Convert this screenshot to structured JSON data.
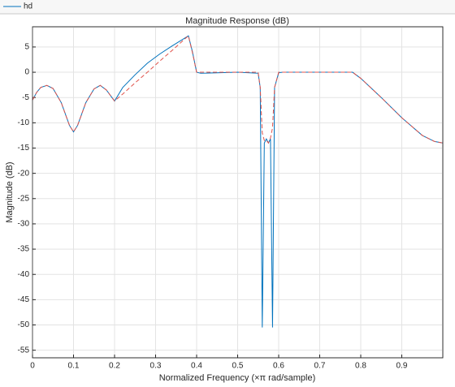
{
  "chart_data": {
    "type": "line",
    "title": "Magnitude Response (dB)",
    "x_label": "Normalized Frequency (×π rad/sample)",
    "y_label": "Magnitude (dB)",
    "x": [
      0,
      0.01,
      0.02,
      0.035,
      0.05,
      0.07,
      0.09,
      0.1,
      0.11,
      0.13,
      0.15,
      0.165,
      0.18,
      0.2,
      0.22,
      0.25,
      0.28,
      0.31,
      0.34,
      0.37,
      0.38,
      0.39,
      0.4,
      0.41,
      0.5,
      0.55,
      0.555,
      0.56,
      0.565,
      0.57,
      0.575,
      0.58,
      0.585,
      0.59,
      0.6,
      0.61,
      0.7,
      0.78,
      0.8,
      0.85,
      0.9,
      0.95,
      0.98,
      1.0
    ],
    "series": [
      {
        "name": "hd",
        "color": "#0072bd",
        "dashed": false,
        "values": [
          -5.5,
          -4,
          -3,
          -2.6,
          -3.2,
          -6,
          -10.5,
          -11.8,
          -10.5,
          -6,
          -3.3,
          -2.6,
          -3.5,
          -5.7,
          -3,
          -0.5,
          1.8,
          3.6,
          5.2,
          6.7,
          7.2,
          4,
          0,
          -0.2,
          0,
          -0.2,
          -3,
          -50.5,
          -14,
          -13.2,
          -14,
          -13.2,
          -50.5,
          -3,
          -0.1,
          0,
          0,
          0,
          -1.2,
          -5,
          -9,
          -12.5,
          -13.7,
          -14
        ]
      },
      {
        "color": "#e0524a",
        "dashed": true,
        "values": [
          -5.5,
          -4,
          -3,
          -2.6,
          -3.2,
          -6,
          -10.5,
          -11.8,
          -10.5,
          -6,
          -3.3,
          -2.6,
          -3.5,
          -5.7,
          -4.3,
          -2.1,
          0,
          2.2,
          4.3,
          6.5,
          7.2,
          3.8,
          0,
          0,
          0,
          0,
          -3,
          -12,
          -13.5,
          -13.5,
          -14,
          -13,
          -11,
          -3,
          0,
          0,
          0,
          0,
          -1.2,
          -5,
          -9,
          -12.5,
          -13.7,
          -14
        ]
      }
    ],
    "xlim": [
      0,
      1
    ],
    "ylim": [
      -56.5,
      9
    ],
    "xticks": [
      0,
      0.1,
      0.2,
      0.3,
      0.4,
      0.5,
      0.6,
      0.7,
      0.8,
      0.9
    ],
    "yticks": [
      5,
      0,
      -5,
      -10,
      -15,
      -20,
      -25,
      -30,
      -35,
      -40,
      -45,
      -50,
      -55
    ],
    "grid": true
  }
}
